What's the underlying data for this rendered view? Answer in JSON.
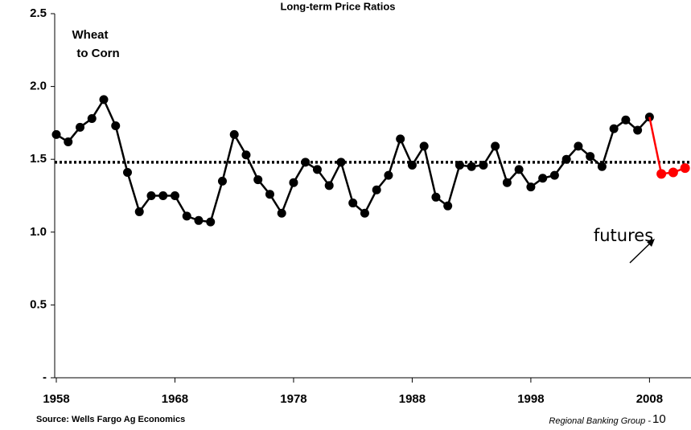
{
  "chart_data": {
    "type": "line",
    "title": "Long-term Price Ratios",
    "subtitle": [
      "Wheat",
      "to Corn"
    ],
    "annotation": "futures",
    "source": "Source: Wells Fargo Ag Economics",
    "footer": "Regional Banking Group -",
    "page_number": 10,
    "x": [
      1958,
      1959,
      1960,
      1961,
      1962,
      1963,
      1964,
      1965,
      1966,
      1967,
      1968,
      1969,
      1970,
      1971,
      1972,
      1973,
      1974,
      1975,
      1976,
      1977,
      1978,
      1979,
      1980,
      1981,
      1982,
      1983,
      1984,
      1985,
      1986,
      1987,
      1988,
      1989,
      1990,
      1991,
      1992,
      1993,
      1994,
      1995,
      1996,
      1997,
      1998,
      1999,
      2000,
      2001,
      2002,
      2003,
      2004,
      2005,
      2006,
      2007,
      2008,
      2009,
      2010,
      2011
    ],
    "series": [
      {
        "color": "#000000",
        "values": [
          1.67,
          1.62,
          1.72,
          1.78,
          1.91,
          1.73,
          1.41,
          1.14,
          1.25,
          1.25,
          1.25,
          1.11,
          1.08,
          1.07,
          1.35,
          1.67,
          1.53,
          1.36,
          1.26,
          1.13,
          1.34,
          1.48,
          1.43,
          1.32,
          1.48,
          1.2,
          1.13,
          1.29,
          1.39,
          1.64,
          1.46,
          1.59,
          1.24,
          1.18,
          1.46,
          1.45,
          1.46,
          1.59,
          1.34,
          1.43,
          1.31,
          1.37,
          1.39,
          1.5,
          1.59,
          1.52,
          1.45,
          1.71,
          1.77,
          1.7,
          1.79,
          null,
          null,
          null
        ]
      },
      {
        "color": "#ff0000",
        "values": [
          null,
          null,
          null,
          null,
          null,
          null,
          null,
          null,
          null,
          null,
          null,
          null,
          null,
          null,
          null,
          null,
          null,
          null,
          null,
          null,
          null,
          null,
          null,
          null,
          null,
          null,
          null,
          null,
          null,
          null,
          null,
          null,
          null,
          null,
          null,
          null,
          null,
          null,
          null,
          null,
          null,
          null,
          null,
          null,
          null,
          null,
          null,
          null,
          null,
          null,
          null,
          1.4,
          1.41,
          1.44
        ]
      }
    ],
    "reference_line": 1.48,
    "xlim": [
      1958,
      2011.5
    ],
    "xticks": [
      1958,
      1968,
      1978,
      1988,
      1998,
      2008
    ],
    "ylim": [
      0,
      2.5
    ],
    "yticks": [
      {
        "value": 0,
        "label": "-"
      },
      0.5,
      {
        "value": 1,
        "label": "1.0"
      },
      1.5,
      {
        "value": 2,
        "label": "2.0"
      },
      2.5
    ]
  }
}
